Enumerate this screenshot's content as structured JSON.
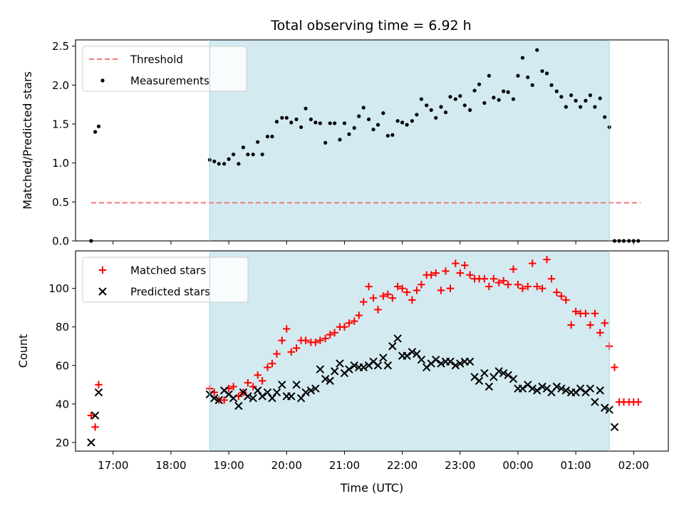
{
  "figure": {
    "title": "Total observing time = 6.92 h",
    "shade_color": "#d3eaf0",
    "shade_edge_color": "#a9d3e0"
  },
  "chart_data": [
    {
      "type": "scatter",
      "name": "ratio-panel",
      "title": "Total observing time = 6.92 h",
      "xlabel": "",
      "ylabel": "Matched/Predicted stars",
      "xlim": [
        16.35,
        26.6
      ],
      "ylim": [
        0.0,
        2.58
      ],
      "yticks": [
        0.0,
        0.5,
        1.0,
        1.5,
        2.0,
        2.5
      ],
      "ytick_labels": [
        "0.0",
        "0.5",
        "1.0",
        "1.5",
        "2.0",
        "2.5"
      ],
      "xticks": [
        17,
        18,
        19,
        20,
        21,
        22,
        23,
        24,
        25,
        26
      ],
      "shaded_span": [
        18.67,
        25.58
      ],
      "legend": {
        "position": "top-left",
        "entries": [
          "Threshold",
          "Measurements"
        ]
      },
      "threshold": {
        "label": "Threshold",
        "y": 0.49,
        "x": [
          16.62,
          26.12
        ],
        "color": "#f07878",
        "style": "dashed"
      },
      "series": [
        {
          "name": "Measurements",
          "marker": "dot",
          "color": "#000000",
          "x": [
            16.62,
            16.69,
            16.75,
            18.67,
            18.75,
            18.83,
            18.92,
            19.0,
            19.08,
            19.17,
            19.25,
            19.33,
            19.42,
            19.5,
            19.58,
            19.67,
            19.75,
            19.83,
            19.92,
            20.0,
            20.08,
            20.17,
            20.25,
            20.33,
            20.42,
            20.5,
            20.58,
            20.67,
            20.75,
            20.83,
            20.92,
            21.0,
            21.08,
            21.17,
            21.25,
            21.33,
            21.42,
            21.5,
            21.58,
            21.67,
            21.75,
            21.83,
            21.92,
            22.0,
            22.08,
            22.17,
            22.25,
            22.33,
            22.42,
            22.5,
            22.58,
            22.67,
            22.75,
            22.83,
            22.92,
            23.0,
            23.08,
            23.17,
            23.25,
            23.33,
            23.42,
            23.5,
            23.58,
            23.67,
            23.75,
            23.83,
            23.92,
            24.0,
            24.08,
            24.17,
            24.25,
            24.33,
            24.42,
            24.5,
            24.58,
            24.67,
            24.75,
            24.83,
            24.92,
            25.0,
            25.08,
            25.17,
            25.25,
            25.33,
            25.42,
            25.5,
            25.58,
            25.67,
            25.75,
            25.83,
            25.92,
            26.0,
            26.08
          ],
          "y": [
            0.0,
            1.4,
            1.47,
            1.04,
            1.02,
            0.99,
            0.99,
            1.05,
            1.11,
            0.99,
            1.2,
            1.11,
            1.11,
            1.27,
            1.11,
            1.34,
            1.34,
            1.53,
            1.58,
            1.58,
            1.52,
            1.56,
            1.46,
            1.7,
            1.56,
            1.52,
            1.51,
            1.26,
            1.51,
            1.51,
            1.3,
            1.51,
            1.37,
            1.45,
            1.6,
            1.71,
            1.56,
            1.43,
            1.49,
            1.64,
            1.35,
            1.36,
            1.54,
            1.52,
            1.49,
            1.54,
            1.62,
            1.82,
            1.74,
            1.68,
            1.58,
            1.72,
            1.65,
            1.85,
            1.82,
            1.86,
            1.74,
            1.68,
            1.93,
            2.01,
            1.77,
            2.12,
            1.84,
            1.81,
            1.92,
            1.91,
            1.82,
            2.12,
            2.35,
            2.1,
            2.0,
            2.45,
            2.18,
            2.15,
            2.0,
            1.92,
            1.85,
            1.72,
            1.87,
            1.8,
            1.72,
            1.8,
            1.87,
            1.72,
            1.83,
            1.59,
            1.46,
            0.0,
            0.0,
            0.0,
            0.0,
            0.0,
            0.0
          ]
        }
      ]
    },
    {
      "type": "scatter",
      "name": "count-panel",
      "xlabel": "Time (UTC)",
      "ylabel": "Count",
      "xlim": [
        16.35,
        26.6
      ],
      "ylim": [
        15.5,
        119.5
      ],
      "yticks": [
        20,
        40,
        60,
        80,
        100
      ],
      "ytick_labels": [
        "20",
        "40",
        "60",
        "80",
        "100"
      ],
      "xticks": [
        17,
        18,
        19,
        20,
        21,
        22,
        23,
        24,
        25,
        26
      ],
      "xtick_labels": [
        "17:00",
        "18:00",
        "19:00",
        "20:00",
        "21:00",
        "22:00",
        "23:00",
        "00:00",
        "01:00",
        "02:00"
      ],
      "shaded_span": [
        18.67,
        25.58
      ],
      "legend": {
        "position": "top-left",
        "entries": [
          "Matched stars",
          "Predicted stars"
        ]
      },
      "series": [
        {
          "name": "Matched stars",
          "marker": "plus",
          "color": "#ff0000",
          "x": [
            16.62,
            16.69,
            16.75,
            18.67,
            18.75,
            18.83,
            18.92,
            19.0,
            19.08,
            19.17,
            19.25,
            19.33,
            19.42,
            19.5,
            19.58,
            19.67,
            19.75,
            19.83,
            19.92,
            20.0,
            20.08,
            20.17,
            20.25,
            20.33,
            20.42,
            20.5,
            20.58,
            20.67,
            20.75,
            20.83,
            20.92,
            21.0,
            21.08,
            21.17,
            21.25,
            21.33,
            21.42,
            21.5,
            21.58,
            21.67,
            21.75,
            21.83,
            21.92,
            22.0,
            22.08,
            22.17,
            22.25,
            22.33,
            22.42,
            22.5,
            22.58,
            22.67,
            22.75,
            22.83,
            22.92,
            23.0,
            23.08,
            23.17,
            23.25,
            23.33,
            23.42,
            23.5,
            23.58,
            23.67,
            23.75,
            23.83,
            23.92,
            24.0,
            24.08,
            24.17,
            24.25,
            24.33,
            24.42,
            24.5,
            24.58,
            24.67,
            24.75,
            24.83,
            24.92,
            25.0,
            25.08,
            25.17,
            25.25,
            25.33,
            25.42,
            25.5,
            25.58,
            25.67,
            25.75,
            25.83,
            25.92,
            26.0,
            26.08
          ],
          "y": [
            34,
            28,
            50,
            48,
            46,
            42,
            42,
            48,
            49,
            44,
            46,
            51,
            49,
            55,
            52,
            59,
            61,
            66,
            73,
            79,
            67,
            69,
            73,
            73,
            72,
            72,
            73,
            74,
            76,
            77,
            80,
            80,
            82,
            83,
            86,
            93,
            101,
            95,
            89,
            96,
            97,
            95,
            101,
            100,
            98,
            94,
            99,
            102,
            107,
            107,
            108,
            99,
            109,
            100,
            113,
            108,
            112,
            107,
            105,
            105,
            105,
            101,
            105,
            103,
            104,
            102,
            110,
            102,
            100,
            101,
            113,
            101,
            100,
            115,
            105,
            98,
            96,
            94,
            81,
            88,
            87,
            87,
            81,
            87,
            77,
            82,
            70,
            59,
            41,
            41,
            41,
            41,
            41
          ]
        },
        {
          "name": "Predicted stars",
          "marker": "x",
          "color": "#000000",
          "x": [
            16.62,
            16.69,
            16.75,
            18.67,
            18.75,
            18.83,
            18.92,
            19.0,
            19.08,
            19.17,
            19.25,
            19.33,
            19.42,
            19.5,
            19.58,
            19.67,
            19.75,
            19.83,
            19.92,
            20.0,
            20.08,
            20.17,
            20.25,
            20.33,
            20.42,
            20.5,
            20.58,
            20.67,
            20.75,
            20.83,
            20.92,
            21.0,
            21.08,
            21.17,
            21.25,
            21.33,
            21.42,
            21.5,
            21.58,
            21.67,
            21.75,
            21.83,
            21.92,
            22.0,
            22.08,
            22.17,
            22.25,
            22.33,
            22.42,
            22.5,
            22.58,
            22.67,
            22.75,
            22.83,
            22.92,
            23.0,
            23.08,
            23.17,
            23.25,
            23.33,
            23.42,
            23.5,
            23.58,
            23.67,
            23.75,
            23.83,
            23.92,
            24.0,
            24.08,
            24.17,
            24.25,
            24.33,
            24.42,
            24.5,
            24.58,
            24.67,
            24.75,
            24.83,
            24.92,
            25.0,
            25.08,
            25.17,
            25.25,
            25.33,
            25.42,
            25.5,
            25.58,
            25.67
          ],
          "y": [
            20,
            34,
            46,
            45,
            43,
            42,
            47,
            45,
            43,
            39,
            46,
            44,
            43,
            47,
            44,
            46,
            43,
            46,
            50,
            44,
            44,
            50,
            43,
            46,
            47,
            48,
            58,
            53,
            52,
            57,
            61,
            56,
            58,
            60,
            59,
            59,
            60,
            62,
            60,
            64,
            60,
            70,
            74,
            65,
            65,
            67,
            66,
            63,
            59,
            61,
            63,
            61,
            62,
            62,
            60,
            61,
            62,
            62,
            54,
            52,
            56,
            49,
            54,
            57,
            56,
            55,
            53,
            48,
            48,
            50,
            48,
            47,
            49,
            48,
            46,
            49,
            48,
            47,
            46,
            46,
            48,
            46,
            48,
            41,
            47,
            38,
            37,
            28
          ]
        }
      ]
    }
  ]
}
